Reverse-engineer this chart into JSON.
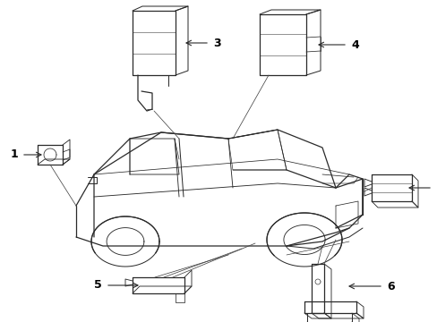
{
  "background_color": "#ffffff",
  "line_color": "#2a2a2a",
  "label_color": "#000000",
  "fig_width": 4.89,
  "fig_height": 3.6,
  "dpi": 100,
  "lw": 0.9
}
